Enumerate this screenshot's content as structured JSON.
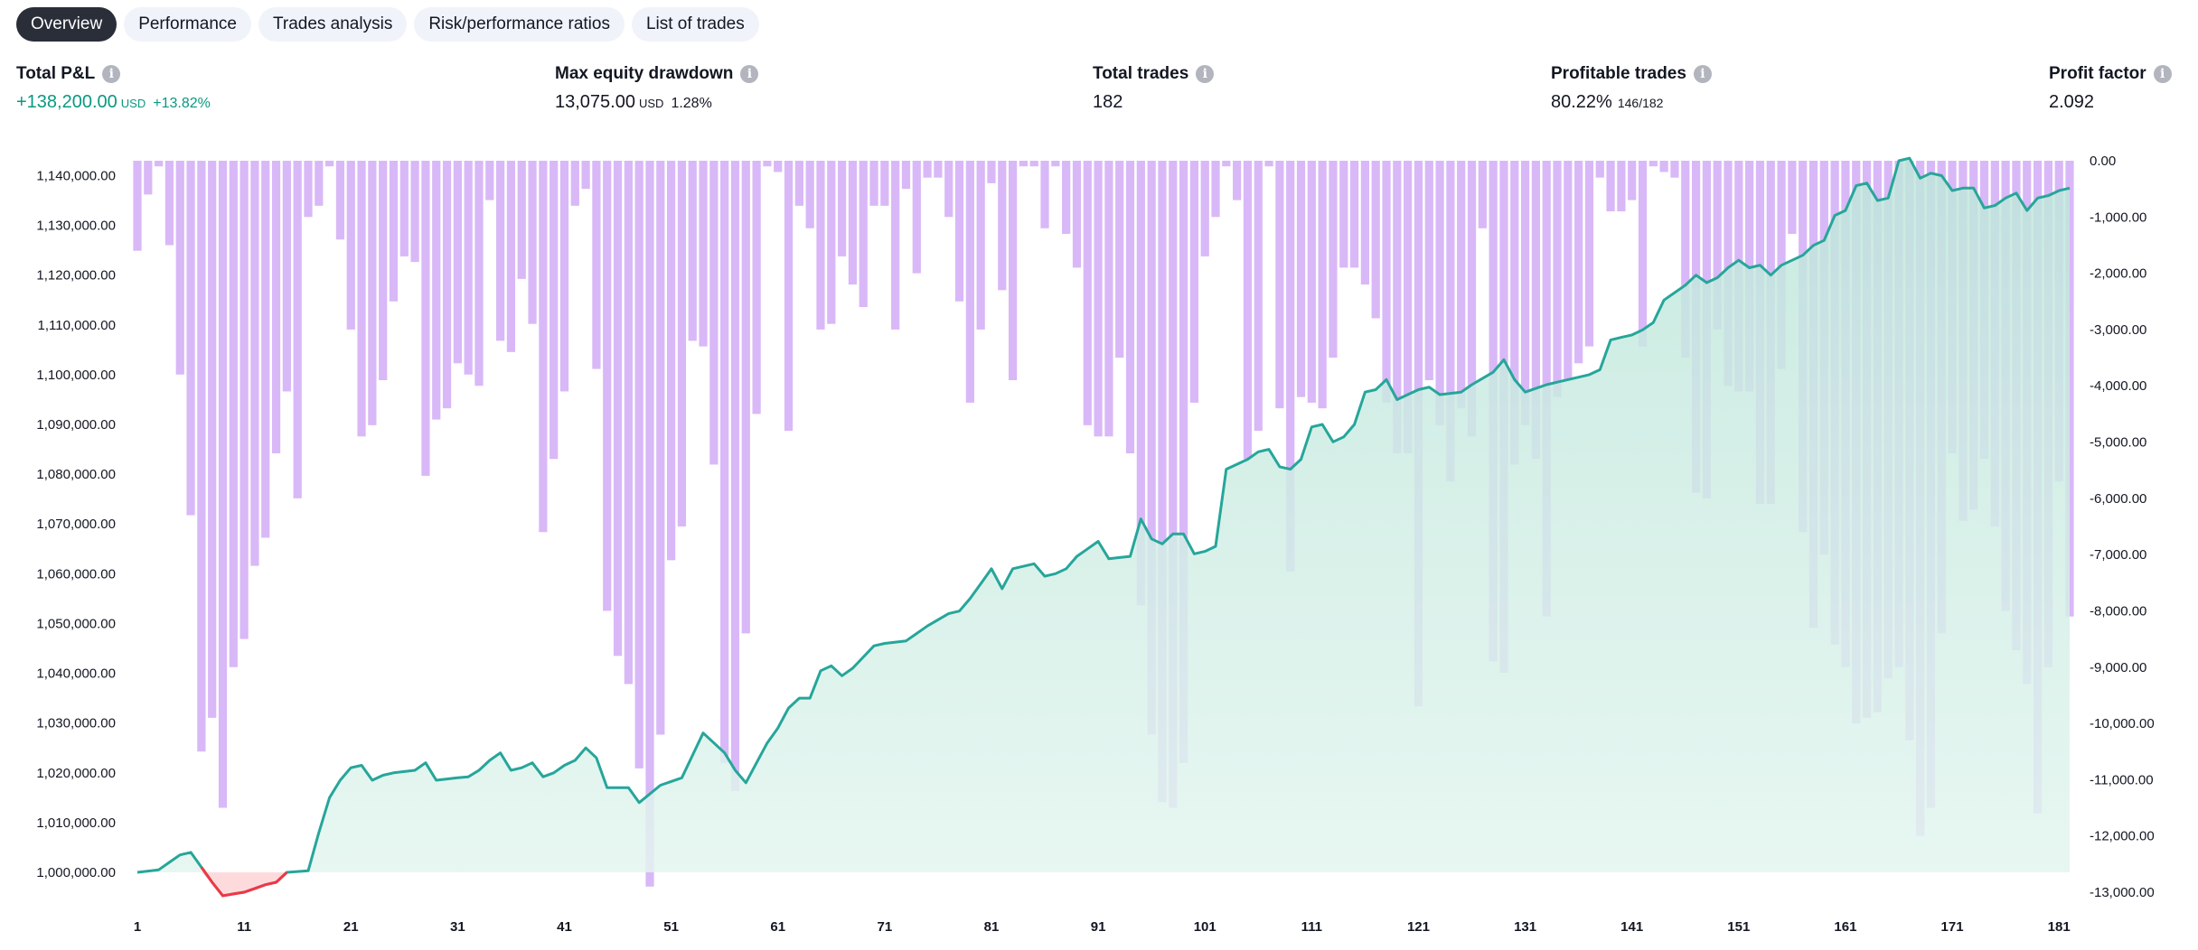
{
  "tabs": [
    {
      "label": "Overview",
      "active": true
    },
    {
      "label": "Performance",
      "active": false
    },
    {
      "label": "Trades analysis",
      "active": false
    },
    {
      "label": "Risk/performance ratios",
      "active": false
    },
    {
      "label": "List of trades",
      "active": false
    }
  ],
  "kpis": {
    "total_pnl": {
      "label": "Total P&L",
      "value": "+138,200.00",
      "unit": "USD",
      "pct": "+13.82%"
    },
    "max_drawdown": {
      "label": "Max equity drawdown",
      "value": "13,075.00",
      "unit": "USD",
      "pct": "1.28%"
    },
    "total_trades": {
      "label": "Total trades",
      "value": "182"
    },
    "profitable_trades": {
      "label": "Profitable trades",
      "value": "80.22%",
      "detail": "146/182"
    },
    "profit_factor": {
      "label": "Profit factor",
      "value": "2.092"
    }
  },
  "colors": {
    "equity_line": "#26a69a",
    "equity_fill": "#c8ebe2",
    "equity_negative": "#f23645",
    "drawdown_bar": "#d9b8f7",
    "tab_active_bg": "#2a2e39",
    "tab_bg": "#f0f3fa",
    "positive_text": "#089981"
  },
  "chart_data": {
    "type": "line",
    "x_ticks": [
      "1",
      "11",
      "21",
      "31",
      "41",
      "51",
      "61",
      "71",
      "81",
      "91",
      "101",
      "111",
      "121",
      "131",
      "141",
      "151",
      "161",
      "171",
      "181"
    ],
    "left_ticks": [
      "1,140,000.00",
      "1,130,000.00",
      "1,120,000.00",
      "1,110,000.00",
      "1,100,000.00",
      "1,090,000.00",
      "1,080,000.00",
      "1,070,000.00",
      "1,060,000.00",
      "1,050,000.00",
      "1,040,000.00",
      "1,030,000.00",
      "1,020,000.00",
      "1,010,000.00",
      "1,000,000.00"
    ],
    "right_ticks": [
      "0.00",
      "-1,000.00",
      "-2,000.00",
      "-3,000.00",
      "-4,000.00",
      "-5,000.00",
      "-6,000.00",
      "-7,000.00",
      "-8,000.00",
      "-9,000.00",
      "-10,000.00",
      "-11,000.00",
      "-12,000.00",
      "-13,000.00"
    ],
    "equity_ylim": [
      996000,
      1143000
    ],
    "drawdown_ylim": [
      -13000,
      0
    ],
    "baseline": 1000000,
    "trade_numbers": [
      1,
      2,
      3,
      4,
      5,
      6,
      7,
      8,
      9,
      10,
      11,
      12,
      13,
      14,
      15,
      16,
      17,
      18,
      19,
      20,
      21,
      22,
      23,
      24,
      25,
      26,
      27,
      28,
      29,
      30,
      31,
      32,
      33,
      34,
      35,
      36,
      37,
      38,
      39,
      40,
      41,
      42,
      43,
      44,
      45,
      46,
      47,
      48,
      49,
      50,
      51,
      52,
      53,
      54,
      55,
      56,
      57,
      58,
      59,
      60,
      61,
      62,
      63,
      64,
      65,
      66,
      67,
      68,
      69,
      70,
      71,
      72,
      73,
      74,
      75,
      76,
      77,
      78,
      79,
      80,
      81,
      82,
      83,
      84,
      85,
      86,
      87,
      88,
      89,
      90,
      91,
      92,
      93,
      94,
      95,
      96,
      97,
      98,
      99,
      100,
      101,
      102,
      103,
      104,
      105,
      106,
      107,
      108,
      109,
      110,
      111,
      112,
      113,
      114,
      115,
      116,
      117,
      118,
      119,
      120,
      121,
      122,
      123,
      124,
      125,
      126,
      127,
      128,
      129,
      130,
      131,
      132,
      133,
      134,
      135,
      136,
      137,
      138,
      139,
      140,
      141,
      142,
      143,
      144,
      145,
      146,
      147,
      148,
      149,
      150,
      151,
      152,
      153,
      154,
      155,
      156,
      157,
      158,
      159,
      160,
      161,
      162,
      163,
      164,
      165,
      166,
      167,
      168,
      169,
      170,
      171,
      172,
      173,
      174,
      175,
      176,
      177,
      178,
      179,
      180,
      181,
      182
    ],
    "equity_anchors": [
      [
        1,
        1000000
      ],
      [
        3,
        1000500
      ],
      [
        5,
        1003500
      ],
      [
        6,
        1004000
      ],
      [
        8,
        998000
      ],
      [
        9,
        995300
      ],
      [
        11,
        996000
      ],
      [
        13,
        997500
      ],
      [
        14,
        998000
      ],
      [
        15,
        1000000
      ],
      [
        17,
        1000300
      ],
      [
        18,
        1008000
      ],
      [
        19,
        1015000
      ],
      [
        20,
        1018500
      ],
      [
        21,
        1021000
      ],
      [
        22,
        1021500
      ],
      [
        23,
        1018500
      ],
      [
        24,
        1019500
      ],
      [
        25,
        1020000
      ],
      [
        27,
        1020500
      ],
      [
        28,
        1022000
      ],
      [
        29,
        1018500
      ],
      [
        31,
        1019000
      ],
      [
        32,
        1019200
      ],
      [
        33,
        1020500
      ],
      [
        34,
        1022500
      ],
      [
        35,
        1024000
      ],
      [
        36,
        1020500
      ],
      [
        37,
        1021000
      ],
      [
        38,
        1022000
      ],
      [
        39,
        1019200
      ],
      [
        40,
        1020000
      ],
      [
        41,
        1021500
      ],
      [
        42,
        1022500
      ],
      [
        43,
        1025000
      ],
      [
        44,
        1023000
      ],
      [
        45,
        1017000
      ],
      [
        47,
        1017000
      ],
      [
        48,
        1014000
      ],
      [
        50,
        1017500
      ],
      [
        52,
        1019000
      ],
      [
        54,
        1028000
      ],
      [
        56,
        1024000
      ],
      [
        57,
        1020500
      ],
      [
        58,
        1018000
      ],
      [
        60,
        1026000
      ],
      [
        61,
        1029000
      ],
      [
        62,
        1033000
      ],
      [
        63,
        1035000
      ],
      [
        64,
        1035000
      ],
      [
        65,
        1040500
      ],
      [
        66,
        1041500
      ],
      [
        67,
        1039500
      ],
      [
        68,
        1041000
      ],
      [
        70,
        1045500
      ],
      [
        71,
        1046000
      ],
      [
        73,
        1046500
      ],
      [
        74,
        1048000
      ],
      [
        75,
        1049500
      ],
      [
        77,
        1052000
      ],
      [
        78,
        1052500
      ],
      [
        79,
        1055000
      ],
      [
        80,
        1058000
      ],
      [
        81,
        1061000
      ],
      [
        82,
        1057000
      ],
      [
        83,
        1061000
      ],
      [
        85,
        1062000
      ],
      [
        86,
        1059500
      ],
      [
        87,
        1060000
      ],
      [
        88,
        1061000
      ],
      [
        89,
        1063500
      ],
      [
        91,
        1066500
      ],
      [
        92,
        1063000
      ],
      [
        94,
        1063500
      ],
      [
        95,
        1071000
      ],
      [
        96,
        1067000
      ],
      [
        97,
        1066000
      ],
      [
        98,
        1068000
      ],
      [
        99,
        1068000
      ],
      [
        100,
        1064000
      ],
      [
        101,
        1064500
      ],
      [
        102,
        1065500
      ],
      [
        103,
        1081000
      ],
      [
        104,
        1082000
      ],
      [
        105,
        1083000
      ],
      [
        106,
        1084500
      ],
      [
        107,
        1085000
      ],
      [
        108,
        1081500
      ],
      [
        109,
        1081000
      ],
      [
        110,
        1083000
      ],
      [
        111,
        1089500
      ],
      [
        112,
        1090000
      ],
      [
        113,
        1086500
      ],
      [
        114,
        1087500
      ],
      [
        115,
        1090000
      ],
      [
        116,
        1096500
      ],
      [
        117,
        1097000
      ],
      [
        118,
        1099000
      ],
      [
        119,
        1095000
      ],
      [
        120,
        1096000
      ],
      [
        121,
        1097000
      ],
      [
        122,
        1097500
      ],
      [
        123,
        1096000
      ],
      [
        125,
        1096500
      ],
      [
        126,
        1098000
      ],
      [
        128,
        1100500
      ],
      [
        129,
        1103000
      ],
      [
        130,
        1099000
      ],
      [
        131,
        1096500
      ],
      [
        133,
        1098000
      ],
      [
        134,
        1098500
      ],
      [
        135,
        1099000
      ],
      [
        137,
        1100000
      ],
      [
        138,
        1101000
      ],
      [
        139,
        1107000
      ],
      [
        141,
        1108000
      ],
      [
        142,
        1109000
      ],
      [
        143,
        1110500
      ],
      [
        144,
        1115000
      ],
      [
        146,
        1118000
      ],
      [
        147,
        1120000
      ],
      [
        148,
        1118500
      ],
      [
        149,
        1119500
      ],
      [
        150,
        1121500
      ],
      [
        151,
        1123000
      ],
      [
        152,
        1121500
      ],
      [
        153,
        1122000
      ],
      [
        154,
        1120000
      ],
      [
        155,
        1122000
      ],
      [
        156,
        1123000
      ],
      [
        157,
        1124000
      ],
      [
        158,
        1126000
      ],
      [
        159,
        1127000
      ],
      [
        160,
        1132000
      ],
      [
        161,
        1133000
      ],
      [
        162,
        1138000
      ],
      [
        163,
        1138500
      ],
      [
        164,
        1135000
      ],
      [
        165,
        1135500
      ],
      [
        166,
        1143000
      ],
      [
        167,
        1143500
      ],
      [
        168,
        1139500
      ],
      [
        169,
        1140500
      ],
      [
        170,
        1140000
      ],
      [
        171,
        1137000
      ],
      [
        172,
        1137500
      ],
      [
        173,
        1137500
      ],
      [
        174,
        1133500
      ],
      [
        175,
        1134000
      ],
      [
        176,
        1135500
      ],
      [
        177,
        1136500
      ],
      [
        178,
        1133000
      ],
      [
        179,
        1135500
      ],
      [
        180,
        1136000
      ],
      [
        181,
        1137000
      ],
      [
        182,
        1137500
      ]
    ],
    "drawdown_anchors": [
      [
        1,
        -1600
      ],
      [
        2,
        -600
      ],
      [
        3,
        -100
      ],
      [
        4,
        -1500
      ],
      [
        5,
        -3800
      ],
      [
        6,
        -6300
      ],
      [
        7,
        -10500
      ],
      [
        8,
        -9900
      ],
      [
        9,
        -11500
      ],
      [
        10,
        -9000
      ],
      [
        11,
        -8500
      ],
      [
        12,
        -7200
      ],
      [
        13,
        -6700
      ],
      [
        14,
        -5200
      ],
      [
        15,
        -4100
      ],
      [
        16,
        -6000
      ],
      [
        17,
        -1000
      ],
      [
        18,
        -800
      ],
      [
        19,
        -100
      ],
      [
        20,
        -1400
      ],
      [
        21,
        -3000
      ],
      [
        22,
        -4900
      ],
      [
        23,
        -4700
      ],
      [
        24,
        -3900
      ],
      [
        25,
        -2500
      ],
      [
        26,
        -1700
      ],
      [
        27,
        -1800
      ],
      [
        28,
        -5600
      ],
      [
        29,
        -4600
      ],
      [
        30,
        -4400
      ],
      [
        31,
        -3600
      ],
      [
        32,
        -3800
      ],
      [
        33,
        -4000
      ],
      [
        34,
        -700
      ],
      [
        35,
        -3200
      ],
      [
        36,
        -3400
      ],
      [
        37,
        -2100
      ],
      [
        38,
        -2900
      ],
      [
        39,
        -6600
      ],
      [
        40,
        -5300
      ],
      [
        41,
        -4100
      ],
      [
        42,
        -800
      ],
      [
        43,
        -500
      ],
      [
        44,
        -3700
      ],
      [
        45,
        -8000
      ],
      [
        46,
        -8800
      ],
      [
        47,
        -9300
      ],
      [
        48,
        -10800
      ],
      [
        49,
        -12900
      ],
      [
        50,
        -10200
      ],
      [
        51,
        -7100
      ],
      [
        52,
        -6500
      ],
      [
        53,
        -3200
      ],
      [
        54,
        -3300
      ],
      [
        55,
        -5400
      ],
      [
        56,
        -10700
      ],
      [
        57,
        -11200
      ],
      [
        58,
        -8400
      ],
      [
        59,
        -4500
      ],
      [
        60,
        -100
      ],
      [
        61,
        -200
      ],
      [
        62,
        -4800
      ],
      [
        63,
        -800
      ],
      [
        64,
        -1200
      ],
      [
        65,
        -3000
      ],
      [
        66,
        -2900
      ],
      [
        67,
        -1700
      ],
      [
        68,
        -2200
      ],
      [
        69,
        -2600
      ],
      [
        70,
        -800
      ],
      [
        71,
        -800
      ],
      [
        72,
        -3000
      ],
      [
        73,
        -500
      ],
      [
        74,
        -2000
      ],
      [
        75,
        -300
      ],
      [
        76,
        -300
      ],
      [
        77,
        -1000
      ],
      [
        78,
        -2500
      ],
      [
        79,
        -4300
      ],
      [
        80,
        -3000
      ],
      [
        81,
        -400
      ],
      [
        82,
        -2300
      ],
      [
        83,
        -3900
      ],
      [
        84,
        -100
      ],
      [
        85,
        -100
      ],
      [
        86,
        -1200
      ],
      [
        87,
        -100
      ],
      [
        88,
        -1300
      ],
      [
        89,
        -1900
      ],
      [
        90,
        -4700
      ],
      [
        91,
        -4900
      ],
      [
        92,
        -4900
      ],
      [
        93,
        -3500
      ],
      [
        94,
        -5200
      ],
      [
        95,
        -7900
      ],
      [
        96,
        -10200
      ],
      [
        97,
        -11400
      ],
      [
        98,
        -11500
      ],
      [
        99,
        -10700
      ],
      [
        100,
        -4300
      ],
      [
        101,
        -1700
      ],
      [
        102,
        -1000
      ],
      [
        103,
        -100
      ],
      [
        104,
        -700
      ],
      [
        105,
        -5300
      ],
      [
        106,
        -4800
      ],
      [
        107,
        -100
      ],
      [
        108,
        -4400
      ],
      [
        109,
        -7300
      ],
      [
        110,
        -4200
      ],
      [
        111,
        -4300
      ],
      [
        112,
        -4400
      ],
      [
        113,
        -3500
      ],
      [
        114,
        -1900
      ],
      [
        115,
        -1900
      ],
      [
        116,
        -2200
      ],
      [
        117,
        -2800
      ],
      [
        118,
        -4300
      ],
      [
        119,
        -5200
      ],
      [
        120,
        -5200
      ],
      [
        121,
        -9700
      ],
      [
        122,
        -3900
      ],
      [
        123,
        -4700
      ],
      [
        124,
        -5700
      ],
      [
        125,
        -4400
      ],
      [
        126,
        -4900
      ],
      [
        127,
        -1200
      ],
      [
        128,
        -8900
      ],
      [
        129,
        -9100
      ],
      [
        130,
        -5400
      ],
      [
        131,
        -4700
      ],
      [
        132,
        -5300
      ],
      [
        133,
        -8100
      ],
      [
        134,
        -4200
      ],
      [
        135,
        -3900
      ],
      [
        136,
        -3600
      ],
      [
        137,
        -3300
      ],
      [
        138,
        -300
      ],
      [
        139,
        -900
      ],
      [
        140,
        -900
      ],
      [
        141,
        -700
      ],
      [
        142,
        -3300
      ],
      [
        143,
        -100
      ],
      [
        144,
        -200
      ],
      [
        145,
        -300
      ],
      [
        146,
        -3500
      ],
      [
        147,
        -5900
      ],
      [
        148,
        -6000
      ],
      [
        149,
        -3000
      ],
      [
        150,
        -4000
      ],
      [
        151,
        -4100
      ],
      [
        152,
        -4100
      ],
      [
        153,
        -6100
      ],
      [
        154,
        -6100
      ],
      [
        155,
        -3700
      ],
      [
        156,
        -1300
      ],
      [
        157,
        -6600
      ],
      [
        158,
        -8300
      ],
      [
        159,
        -7000
      ],
      [
        160,
        -8600
      ],
      [
        161,
        -9000
      ],
      [
        162,
        -10000
      ],
      [
        163,
        -9900
      ],
      [
        164,
        -9800
      ],
      [
        165,
        -9200
      ],
      [
        166,
        -9000
      ],
      [
        167,
        -10300
      ],
      [
        168,
        -12000
      ],
      [
        169,
        -11500
      ],
      [
        170,
        -8400
      ],
      [
        171,
        -5200
      ],
      [
        172,
        -6400
      ],
      [
        173,
        -6200
      ],
      [
        174,
        -5300
      ],
      [
        175,
        -6500
      ],
      [
        176,
        -8000
      ],
      [
        177,
        -8700
      ],
      [
        178,
        -9300
      ],
      [
        179,
        -11600
      ],
      [
        180,
        -9000
      ],
      [
        181,
        -5700
      ],
      [
        182,
        -8100
      ]
    ]
  }
}
